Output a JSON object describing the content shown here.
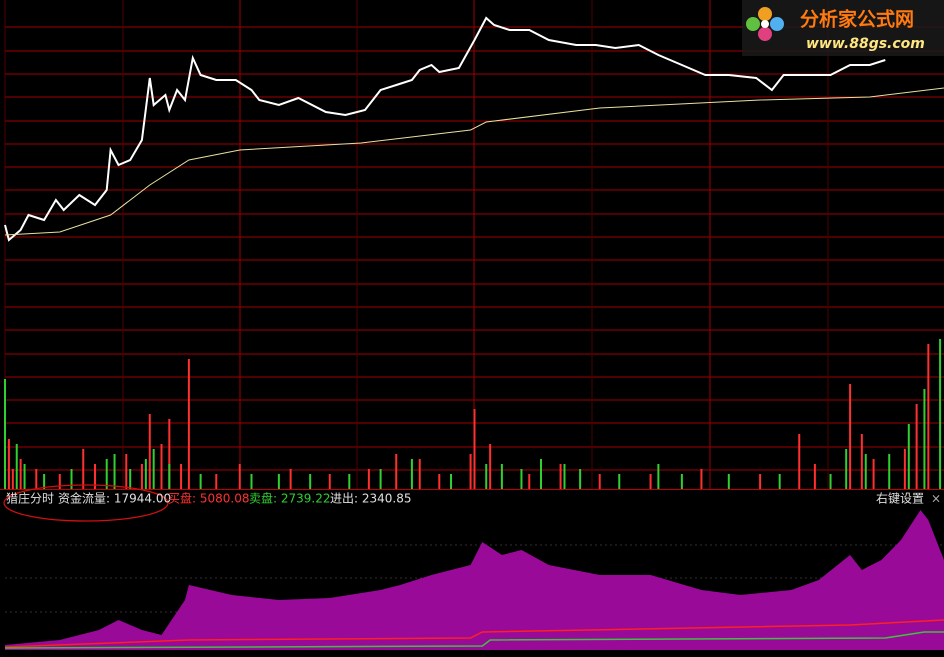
{
  "header": {
    "indicator": "猎庄分时",
    "fund_flow": "资金流量: 17944.00",
    "buy": "买盘: 5080.08",
    "sell": "卖盘: 2739.22",
    "net": "进出: 2340.85",
    "settings": "右键设置",
    "close": "×"
  },
  "watermark": {
    "name": "分析家公式网",
    "url": "www.88gs.com"
  },
  "chart_data": [
    {
      "type": "line",
      "xlim": [
        0,
        240
      ],
      "ylim": [
        0,
        330
      ],
      "grid": true,
      "series": [
        {
          "color": "#ffffff",
          "x": [
            0,
            1,
            4,
            6,
            10,
            13,
            15,
            19,
            23,
            26,
            27,
            29,
            32,
            35,
            37,
            38,
            41,
            42,
            44,
            46,
            48,
            50,
            54,
            59,
            63,
            65,
            70,
            75,
            82,
            87,
            92,
            96,
            100,
            104,
            106,
            109,
            111,
            116,
            120,
            123,
            125,
            129,
            134,
            139,
            146,
            151,
            156,
            162,
            167,
            173,
            179,
            185,
            192,
            196,
            199,
            206,
            211,
            216,
            221,
            225
          ],
          "values": [
            105,
            90,
            100,
            115,
            110,
            130,
            120,
            135,
            125,
            140,
            180,
            165,
            170,
            190,
            252,
            225,
            235,
            220,
            240,
            230,
            272,
            255,
            250,
            250,
            240,
            230,
            225,
            232,
            218,
            215,
            220,
            240,
            245,
            250,
            260,
            265,
            258,
            262,
            290,
            312,
            305,
            300,
            300,
            290,
            285,
            285,
            282,
            285,
            275,
            265,
            255,
            255,
            252,
            240,
            255,
            255,
            255,
            265,
            265,
            270
          ]
        },
        {
          "color": "#e8e0a0",
          "x": [
            0,
            14,
            27,
            37,
            47,
            60,
            91,
            119,
            123,
            152,
            193,
            221,
            240
          ],
          "values": [
            95,
            98,
            115,
            145,
            170,
            180,
            187,
            200,
            208,
            222,
            230,
            233,
            242
          ]
        }
      ]
    },
    {
      "type": "bar",
      "xlim": [
        0,
        240
      ],
      "ylim": [
        0,
        160
      ],
      "series": [
        {
          "color": "#ff3030",
          "x": [
            1,
            2,
            4,
            8,
            14,
            20,
            23,
            31,
            35,
            37,
            40,
            42,
            45,
            47,
            54,
            60,
            73,
            83,
            93,
            100,
            106,
            111,
            119,
            120,
            124,
            134,
            142,
            152,
            165,
            178,
            193,
            203,
            207,
            216,
            219,
            222,
            230,
            233,
            236
          ],
          "values": [
            50,
            20,
            30,
            20,
            15,
            40,
            25,
            35,
            25,
            75,
            45,
            70,
            25,
            130,
            15,
            25,
            20,
            15,
            20,
            35,
            30,
            15,
            35,
            80,
            45,
            15,
            25,
            15,
            15,
            20,
            15,
            55,
            25,
            105,
            55,
            30,
            40,
            85,
            145
          ]
        },
        {
          "color": "#30d030",
          "x": [
            0,
            3,
            5,
            10,
            17,
            26,
            28,
            32,
            36,
            38,
            42,
            50,
            63,
            70,
            78,
            88,
            96,
            104,
            114,
            123,
            127,
            132,
            137,
            143,
            147,
            157,
            167,
            173,
            185,
            198,
            211,
            215,
            220,
            226,
            231,
            235,
            239
          ],
          "values": [
            110,
            45,
            25,
            15,
            20,
            30,
            35,
            20,
            30,
            40,
            25,
            15,
            15,
            15,
            15,
            15,
            20,
            30,
            15,
            25,
            25,
            20,
            30,
            25,
            20,
            15,
            25,
            15,
            15,
            15,
            15,
            40,
            35,
            35,
            65,
            100,
            150
          ]
        }
      ]
    },
    {
      "type": "area",
      "xlim": [
        0,
        240
      ],
      "ylim": [
        0,
        160
      ],
      "series": [
        {
          "kind": "area",
          "color": "#990a99",
          "x": [
            0,
            14,
            24,
            29,
            35,
            40,
            46,
            47,
            58,
            70,
            83,
            96,
            101,
            109,
            119,
            122,
            127,
            132,
            139,
            152,
            165,
            178,
            188,
            201,
            208,
            216,
            219,
            224,
            229,
            234,
            236,
            240
          ],
          "values": [
            5,
            10,
            20,
            30,
            20,
            15,
            50,
            65,
            55,
            50,
            52,
            60,
            65,
            75,
            85,
            108,
            95,
            100,
            85,
            75,
            75,
            60,
            55,
            60,
            70,
            95,
            80,
            90,
            110,
            140,
            130,
            90
          ]
        },
        {
          "kind": "line",
          "color": "#ff2020",
          "x": [
            0,
            47,
            119,
            122,
            216,
            240
          ],
          "values": [
            3,
            10,
            12,
            18,
            25,
            30
          ]
        },
        {
          "kind": "line",
          "color": "#40c040",
          "x": [
            0,
            122,
            124,
            225,
            235,
            240
          ],
          "values": [
            2,
            4,
            10,
            12,
            18,
            18
          ]
        }
      ]
    }
  ]
}
